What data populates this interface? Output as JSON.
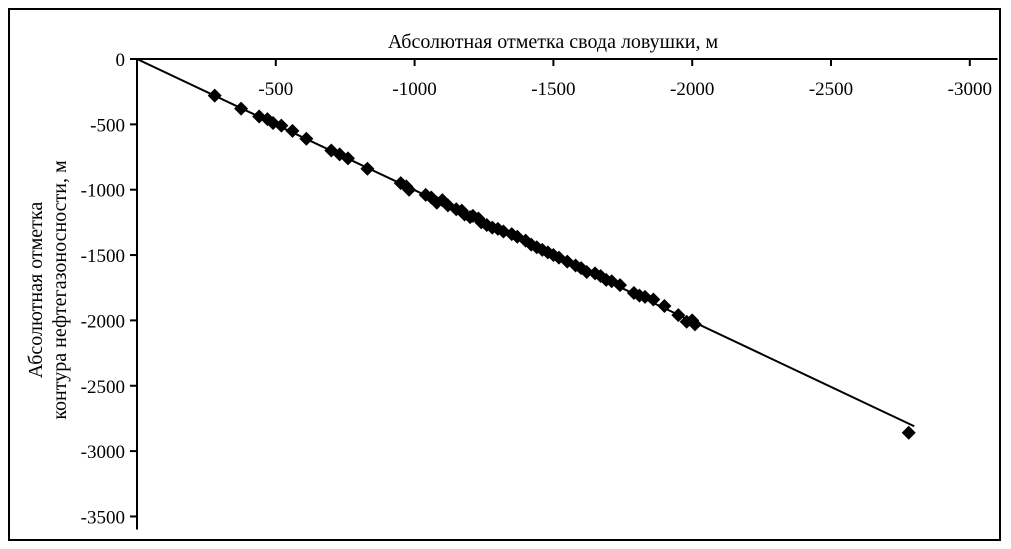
{
  "chart_data": {
    "type": "scatter",
    "xlabel": "Абсолютная отметка свода ловушки, м",
    "ylabel_lines": [
      "Абсолютная отметка",
      "контура нефтегазоносности, м"
    ],
    "x_axis_position": "top",
    "xlim": [
      0,
      -3100
    ],
    "ylim": [
      0,
      -3600
    ],
    "x_ticks": [
      -500,
      -1000,
      -1500,
      -2000,
      -2500,
      -3000
    ],
    "y_ticks": [
      0,
      -500,
      -1000,
      -1500,
      -2000,
      -2500,
      -3000,
      -3500
    ],
    "x_tick_labels": [
      "-500",
      "-1000",
      "-1500",
      "-2000",
      "-2500",
      "-3000"
    ],
    "y_tick_labels": [
      "0",
      "-500",
      "-1000",
      "-1500",
      "-2000",
      "-2500",
      "-3000",
      "-3500"
    ],
    "grid": false,
    "trendline": {
      "x": [
        0,
        -2800
      ],
      "y": [
        0,
        -2810
      ]
    },
    "marker": "diamond",
    "color": "#000000",
    "series": [
      {
        "points": [
          [
            -280,
            -280
          ],
          [
            -375,
            -380
          ],
          [
            -440,
            -440
          ],
          [
            -470,
            -460
          ],
          [
            -490,
            -490
          ],
          [
            -520,
            -510
          ],
          [
            -560,
            -550
          ],
          [
            -610,
            -610
          ],
          [
            -700,
            -700
          ],
          [
            -730,
            -730
          ],
          [
            -760,
            -760
          ],
          [
            -830,
            -840
          ],
          [
            -950,
            -950
          ],
          [
            -970,
            -975
          ],
          [
            -980,
            -1000
          ],
          [
            -1040,
            -1040
          ],
          [
            -1060,
            -1060
          ],
          [
            -1080,
            -1100
          ],
          [
            -1100,
            -1080
          ],
          [
            -1120,
            -1120
          ],
          [
            -1150,
            -1150
          ],
          [
            -1170,
            -1160
          ],
          [
            -1180,
            -1190
          ],
          [
            -1200,
            -1210
          ],
          [
            -1210,
            -1200
          ],
          [
            -1230,
            -1220
          ],
          [
            -1240,
            -1250
          ],
          [
            -1260,
            -1270
          ],
          [
            -1280,
            -1290
          ],
          [
            -1300,
            -1300
          ],
          [
            -1320,
            -1320
          ],
          [
            -1350,
            -1340
          ],
          [
            -1370,
            -1360
          ],
          [
            -1400,
            -1390
          ],
          [
            -1420,
            -1420
          ],
          [
            -1440,
            -1440
          ],
          [
            -1460,
            -1460
          ],
          [
            -1480,
            -1480
          ],
          [
            -1500,
            -1500
          ],
          [
            -1520,
            -1520
          ],
          [
            -1550,
            -1550
          ],
          [
            -1580,
            -1580
          ],
          [
            -1600,
            -1600
          ],
          [
            -1620,
            -1630
          ],
          [
            -1650,
            -1640
          ],
          [
            -1670,
            -1660
          ],
          [
            -1690,
            -1690
          ],
          [
            -1710,
            -1700
          ],
          [
            -1740,
            -1730
          ],
          [
            -1790,
            -1790
          ],
          [
            -1810,
            -1810
          ],
          [
            -1830,
            -1820
          ],
          [
            -1860,
            -1840
          ],
          [
            -1900,
            -1890
          ],
          [
            -1950,
            -1960
          ],
          [
            -1980,
            -2010
          ],
          [
            -2010,
            -2030
          ],
          [
            -2000,
            -2000
          ],
          [
            -2780,
            -2860
          ]
        ]
      }
    ]
  }
}
